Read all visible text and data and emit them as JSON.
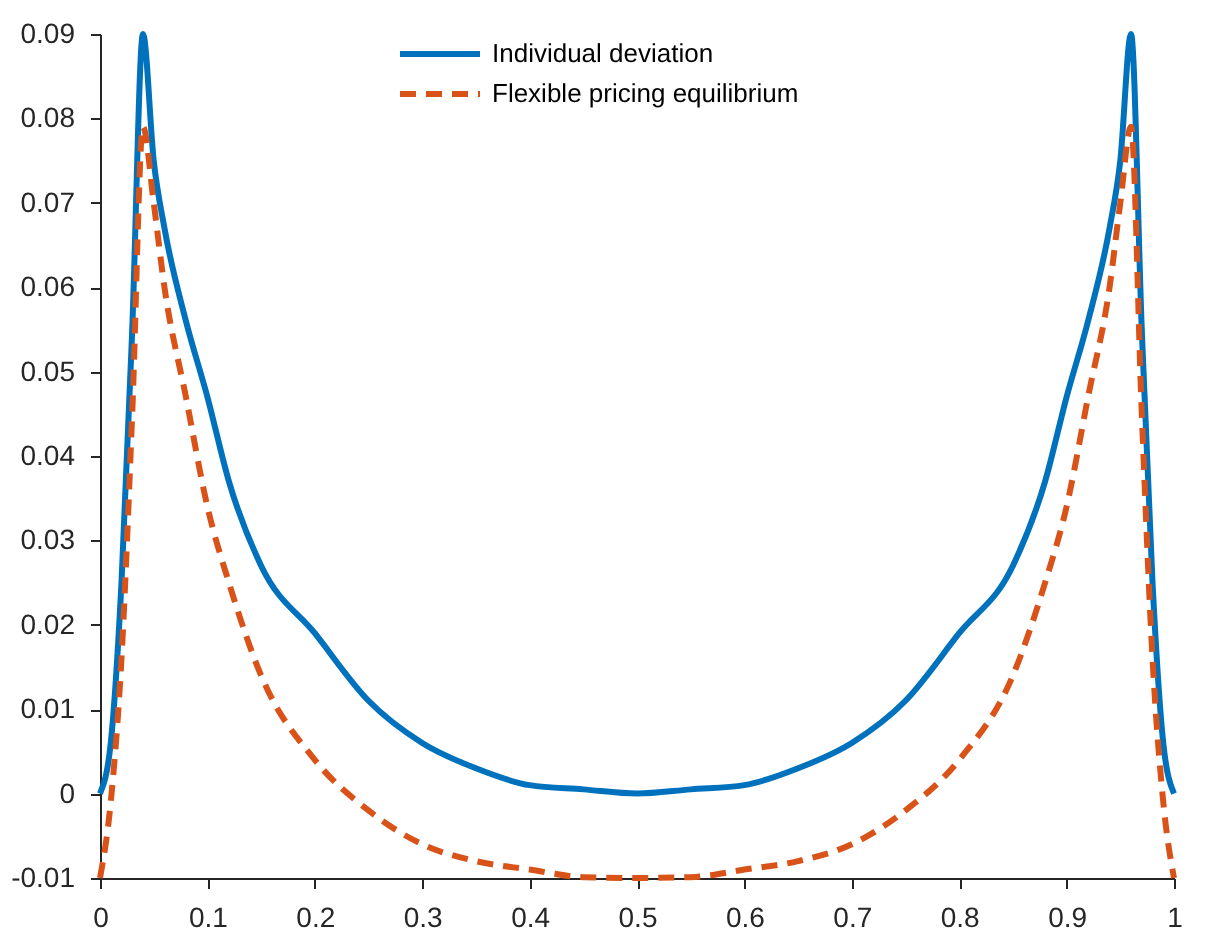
{
  "chart_data": {
    "type": "line",
    "x": [
      0,
      0.01,
      0.02,
      0.03,
      0.04,
      0.05,
      0.06,
      0.08,
      0.1,
      0.12,
      0.15,
      0.2,
      0.25,
      0.3,
      0.35,
      0.4,
      0.45,
      0.5,
      0.55,
      0.6,
      0.65,
      0.7,
      0.75,
      0.8,
      0.85,
      0.88,
      0.9,
      0.92,
      0.94,
      0.95,
      0.96,
      0.97,
      0.98,
      0.99,
      1
    ],
    "series": [
      {
        "name": "Individual deviation",
        "color": "#0072bd",
        "line_style": "solid",
        "values": [
          0,
          0.006,
          0.025,
          0.055,
          0.09,
          0.075,
          0.067,
          0.056,
          0.047,
          0.037,
          0.027,
          0.019,
          0.011,
          0.006,
          0.003,
          0.001,
          0.0005,
          0,
          0.0005,
          0.001,
          0.003,
          0.006,
          0.011,
          0.019,
          0.027,
          0.037,
          0.047,
          0.056,
          0.067,
          0.075,
          0.09,
          0.055,
          0.025,
          0.006,
          0
        ]
      },
      {
        "name": "Flexible pricing equilibrium",
        "color": "#d95319",
        "line_style": "dashed",
        "values": [
          -0.01,
          -0.001,
          0.016,
          0.045,
          0.079,
          0.07,
          0.06,
          0.047,
          0.034,
          0.025,
          0.014,
          0.004,
          -0.002,
          -0.006,
          -0.008,
          -0.009,
          -0.0099,
          -0.01,
          -0.0099,
          -0.009,
          -0.008,
          -0.006,
          -0.002,
          0.004,
          0.014,
          0.025,
          0.034,
          0.047,
          0.06,
          0.07,
          0.079,
          0.045,
          0.016,
          -0.001,
          -0.01
        ]
      }
    ],
    "xlim": [
      0,
      1
    ],
    "xticks": [
      0,
      0.1,
      0.2,
      0.3,
      0.4,
      0.5,
      0.6,
      0.7,
      0.8,
      0.9,
      1
    ],
    "ylim": [
      -0.01,
      0.09
    ],
    "yticks": [
      -0.01,
      0,
      0.01,
      0.02,
      0.03,
      0.04,
      0.05,
      0.06,
      0.07,
      0.08,
      0.09
    ],
    "legend": "top",
    "grid": false
  }
}
